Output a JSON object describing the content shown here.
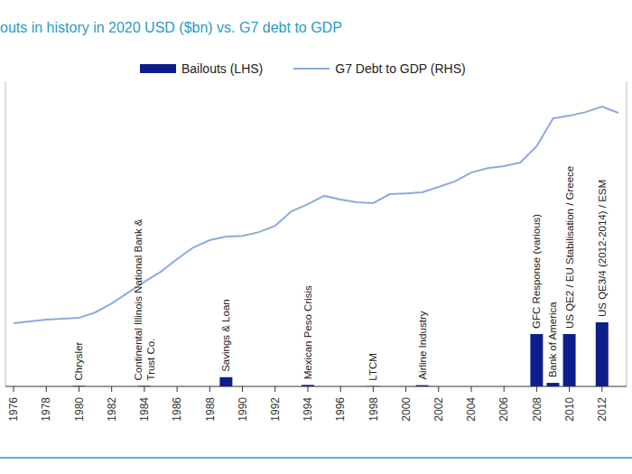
{
  "chart_data": {
    "type": "bar",
    "title": "outs in history in 2020 USD ($bn) vs. G7 debt to GDP",
    "x": [
      1976,
      1977,
      1978,
      1979,
      1980,
      1981,
      1982,
      1983,
      1984,
      1985,
      1986,
      1987,
      1988,
      1989,
      1990,
      1991,
      1992,
      1993,
      1994,
      1995,
      1996,
      1997,
      1998,
      1999,
      2000,
      2001,
      2002,
      2003,
      2004,
      2005,
      2006,
      2007,
      2008,
      2009,
      2010,
      2011,
      2012,
      2013
    ],
    "xlim": [
      1975.5,
      2013.5
    ],
    "xticks": [
      1976,
      1978,
      1980,
      1982,
      1984,
      1986,
      1988,
      1990,
      1992,
      1994,
      1996,
      1998,
      2000,
      2002,
      2004,
      2006,
      2008,
      2010,
      2012
    ],
    "ylim": [
      0,
      6000
    ],
    "y2lim": [
      20,
      130
    ],
    "tick_labels": "x",
    "legend": "top",
    "series": [
      {
        "name": "Bailouts (LHS)",
        "type": "bar",
        "color": "#0d1e8c",
        "values": [
          null,
          null,
          null,
          null,
          10,
          null,
          null,
          null,
          10,
          null,
          null,
          null,
          null,
          180,
          null,
          null,
          null,
          null,
          30,
          null,
          null,
          null,
          6,
          null,
          null,
          25,
          null,
          null,
          null,
          null,
          null,
          null,
          1030,
          70,
          1030,
          null,
          1260,
          null
        ]
      },
      {
        "name": "G7 Debt to GDP (RHS)",
        "type": "line",
        "color": "#8eaadb",
        "axis": "y2",
        "values": [
          42.8,
          43.4,
          44.1,
          44.4,
          44.7,
          46.7,
          49.9,
          53.8,
          57.7,
          61.3,
          65.9,
          70.1,
          72.7,
          74.0,
          74.3,
          75.6,
          77.9,
          83.1,
          85.7,
          88.7,
          87.4,
          86.4,
          86.1,
          89.3,
          89.6,
          90.0,
          91.9,
          93.9,
          97.1,
          98.7,
          99.4,
          100.7,
          106.6,
          116.6,
          117.6,
          118.9,
          120.9,
          118.6
        ]
      }
    ],
    "annotations": [
      {
        "x": 1980,
        "text": "Chrysler"
      },
      {
        "x": 1984,
        "text": "Continental Illinois National Bank &\nTrust Co."
      },
      {
        "x": 1989,
        "text": "Savings & Loan"
      },
      {
        "x": 1994,
        "text": "Mexican Peso Crisis"
      },
      {
        "x": 1998,
        "text": "LTCM"
      },
      {
        "x": 2001,
        "text": "Airline Industry"
      },
      {
        "x": 2008,
        "text": "GFC Response (various)"
      },
      {
        "x": 2009,
        "text": "Bank of America"
      },
      {
        "x": 2010,
        "text": "US QE2 / EU Stabilisation / Greece"
      },
      {
        "x": 2012,
        "text": "US QE3/4 (2012-2014) / ESM"
      }
    ]
  }
}
